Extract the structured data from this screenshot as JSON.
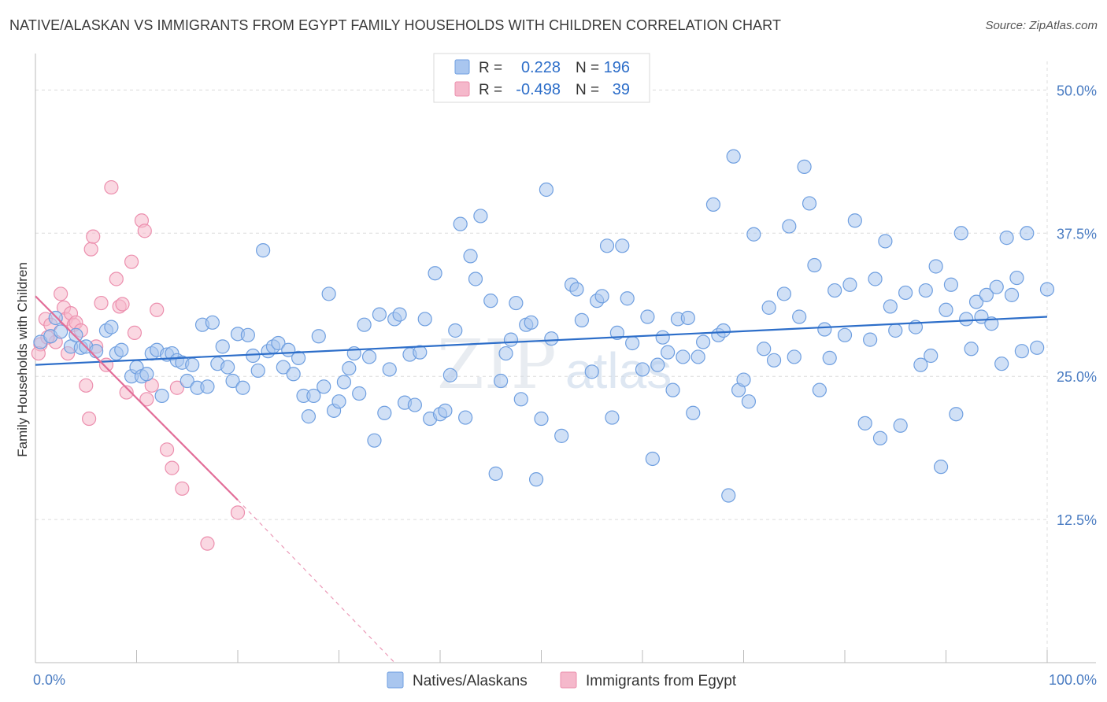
{
  "header": {
    "title": "NATIVE/ALASKAN VS IMMIGRANTS FROM EGYPT FAMILY HOUSEHOLDS WITH CHILDREN CORRELATION CHART",
    "source": "Source: ZipAtlas.com"
  },
  "watermark": {
    "part1": "ZIP",
    "part2": "atlas"
  },
  "legend": {
    "r_label": "R =",
    "n_label": "N =",
    "rows": [
      {
        "series": "Natives/Alaskans",
        "r": "0.228",
        "n": "196",
        "color": "#a9c6ef"
      },
      {
        "series": "Immigrants from Egypt",
        "r": "-0.498",
        "n": "39",
        "color": "#f5b8cb"
      }
    ]
  },
  "chart_data": {
    "type": "scatter",
    "title": "NATIVE/ALASKAN VS IMMIGRANTS FROM EGYPT FAMILY HOUSEHOLDS WITH CHILDREN CORRELATION CHART",
    "xlabel": "",
    "ylabel": "Family Households with Children",
    "xlim": [
      0,
      100
    ],
    "ylim": [
      0,
      52.5
    ],
    "x_tick_labels": [
      "0.0%",
      "100.0%"
    ],
    "y_ticks": [
      12.5,
      25.0,
      37.5,
      50.0
    ],
    "y_tick_labels": [
      "12.5%",
      "25.0%",
      "37.5%",
      "50.0%"
    ],
    "grid": true,
    "legend_position": "top-center",
    "series": [
      {
        "name": "Natives/Alaskans",
        "color": "#6f9fe0",
        "fill": "#a9c6ef",
        "trend": {
          "x": [
            0,
            100
          ],
          "y": [
            26.0,
            30.2
          ],
          "color": "#2d6ec9"
        },
        "points": [
          [
            0.5,
            28.0
          ],
          [
            1.5,
            28.5
          ],
          [
            2,
            30.1
          ],
          [
            2.5,
            28.9
          ],
          [
            3.5,
            27.6
          ],
          [
            4,
            28.6
          ],
          [
            4.5,
            27.5
          ],
          [
            5,
            27.6
          ],
          [
            6,
            27.2
          ],
          [
            7,
            29.0
          ],
          [
            7.5,
            29.3
          ],
          [
            8,
            27.0
          ],
          [
            8.5,
            27.3
          ],
          [
            9.5,
            25.0
          ],
          [
            10,
            25.8
          ],
          [
            10.5,
            25.0
          ],
          [
            11,
            25.2
          ],
          [
            11.5,
            27.0
          ],
          [
            12,
            27.3
          ],
          [
            12.5,
            23.3
          ],
          [
            13,
            26.9
          ],
          [
            13.5,
            27.0
          ],
          [
            14,
            26.4
          ],
          [
            14.5,
            26.2
          ],
          [
            15,
            24.6
          ],
          [
            15.5,
            26.0
          ],
          [
            16,
            24.0
          ],
          [
            16.5,
            29.5
          ],
          [
            17,
            24.1
          ],
          [
            17.5,
            29.7
          ],
          [
            18,
            26.1
          ],
          [
            18.5,
            27.6
          ],
          [
            19,
            25.8
          ],
          [
            19.5,
            24.6
          ],
          [
            20,
            28.7
          ],
          [
            20.5,
            24.0
          ],
          [
            21,
            28.6
          ],
          [
            21.5,
            26.8
          ],
          [
            22,
            25.5
          ],
          [
            22.5,
            36.0
          ],
          [
            23,
            27.2
          ],
          [
            23.5,
            27.6
          ],
          [
            24,
            27.9
          ],
          [
            24.5,
            25.8
          ],
          [
            25,
            27.3
          ],
          [
            25.5,
            25.2
          ],
          [
            26,
            26.6
          ],
          [
            26.5,
            23.3
          ],
          [
            27,
            21.5
          ],
          [
            27.5,
            23.3
          ],
          [
            28,
            28.5
          ],
          [
            28.5,
            24.1
          ],
          [
            29,
            32.2
          ],
          [
            29.5,
            22.0
          ],
          [
            30,
            22.8
          ],
          [
            30.5,
            24.5
          ],
          [
            31,
            25.7
          ],
          [
            31.5,
            27.0
          ],
          [
            32,
            23.5
          ],
          [
            32.5,
            29.5
          ],
          [
            33,
            26.7
          ],
          [
            33.5,
            19.4
          ],
          [
            34,
            30.4
          ],
          [
            34.5,
            21.8
          ],
          [
            35,
            25.6
          ],
          [
            35.5,
            30.0
          ],
          [
            36,
            30.4
          ],
          [
            36.5,
            22.7
          ],
          [
            37,
            26.9
          ],
          [
            37.5,
            22.5
          ],
          [
            38,
            27.1
          ],
          [
            38.5,
            30.0
          ],
          [
            39,
            21.3
          ],
          [
            39.5,
            34.0
          ],
          [
            40,
            21.7
          ],
          [
            40.5,
            22.0
          ],
          [
            41,
            25.1
          ],
          [
            41.5,
            29.0
          ],
          [
            42,
            38.3
          ],
          [
            42.5,
            21.4
          ],
          [
            43,
            35.5
          ],
          [
            43.5,
            33.5
          ],
          [
            44,
            39.0
          ],
          [
            45,
            31.6
          ],
          [
            45.5,
            16.5
          ],
          [
            46,
            24.6
          ],
          [
            46.5,
            27.0
          ],
          [
            47,
            28.2
          ],
          [
            47.5,
            31.4
          ],
          [
            48,
            23.0
          ],
          [
            48.5,
            29.5
          ],
          [
            49,
            29.7
          ],
          [
            49.5,
            16.0
          ],
          [
            50,
            21.3
          ],
          [
            50.5,
            41.3
          ],
          [
            51,
            28.3
          ],
          [
            52,
            19.8
          ],
          [
            53,
            33.0
          ],
          [
            53.5,
            32.6
          ],
          [
            54,
            29.9
          ],
          [
            55,
            25.4
          ],
          [
            55.5,
            31.6
          ],
          [
            56,
            32.0
          ],
          [
            56.5,
            36.4
          ],
          [
            57,
            21.4
          ],
          [
            57.5,
            28.8
          ],
          [
            58,
            36.4
          ],
          [
            58.5,
            31.8
          ],
          [
            59,
            27.9
          ],
          [
            60,
            25.6
          ],
          [
            60.5,
            30.2
          ],
          [
            61,
            17.8
          ],
          [
            61.5,
            26.0
          ],
          [
            62,
            28.4
          ],
          [
            62.5,
            27.1
          ],
          [
            63,
            23.8
          ],
          [
            63.5,
            30.0
          ],
          [
            64,
            26.7
          ],
          [
            64.5,
            30.1
          ],
          [
            65,
            21.8
          ],
          [
            65.5,
            26.7
          ],
          [
            66,
            28.0
          ],
          [
            67,
            40.0
          ],
          [
            67.5,
            28.6
          ],
          [
            68,
            29.0
          ],
          [
            68.5,
            14.6
          ],
          [
            69,
            44.2
          ],
          [
            69.5,
            23.8
          ],
          [
            70,
            24.7
          ],
          [
            70.5,
            22.8
          ],
          [
            71,
            37.4
          ],
          [
            72,
            27.4
          ],
          [
            72.5,
            31.0
          ],
          [
            73,
            26.4
          ],
          [
            74,
            32.2
          ],
          [
            74.5,
            38.1
          ],
          [
            75,
            26.7
          ],
          [
            75.5,
            30.2
          ],
          [
            76,
            43.3
          ],
          [
            76.5,
            40.1
          ],
          [
            77,
            34.7
          ],
          [
            77.5,
            23.8
          ],
          [
            78,
            29.1
          ],
          [
            78.5,
            26.6
          ],
          [
            79,
            32.5
          ],
          [
            80,
            28.6
          ],
          [
            80.5,
            33.0
          ],
          [
            81,
            38.6
          ],
          [
            82,
            20.9
          ],
          [
            82.5,
            28.2
          ],
          [
            83,
            33.5
          ],
          [
            83.5,
            19.6
          ],
          [
            84,
            36.8
          ],
          [
            84.5,
            31.1
          ],
          [
            85,
            29.0
          ],
          [
            85.5,
            20.7
          ],
          [
            86,
            32.3
          ],
          [
            87,
            29.3
          ],
          [
            87.5,
            26.0
          ],
          [
            88,
            32.5
          ],
          [
            88.5,
            26.8
          ],
          [
            89,
            34.6
          ],
          [
            89.5,
            17.1
          ],
          [
            90,
            30.8
          ],
          [
            90.5,
            33.0
          ],
          [
            91,
            21.7
          ],
          [
            91.5,
            37.5
          ],
          [
            92,
            30.0
          ],
          [
            92.5,
            27.4
          ],
          [
            93,
            31.5
          ],
          [
            93.5,
            30.2
          ],
          [
            94,
            32.1
          ],
          [
            94.5,
            29.6
          ],
          [
            95,
            32.8
          ],
          [
            95.5,
            26.1
          ],
          [
            96,
            37.1
          ],
          [
            96.5,
            32.1
          ],
          [
            97,
            33.6
          ],
          [
            97.5,
            27.2
          ],
          [
            98,
            37.5
          ],
          [
            99,
            27.5
          ],
          [
            100,
            32.6
          ]
        ]
      },
      {
        "name": "Immigrants from Egypt",
        "color": "#ec8fae",
        "fill": "#f5b8cb",
        "trend": {
          "x": [
            0,
            20.0
          ],
          "y": [
            32.0,
            14.2
          ],
          "color": "#e26d98",
          "dashed_extension_to": [
            35.5,
            0.0
          ]
        },
        "points": [
          [
            0.5,
            27.8
          ],
          [
            1,
            30.0
          ],
          [
            1.5,
            29.5
          ],
          [
            2,
            28.0
          ],
          [
            2.5,
            32.2
          ],
          [
            2.8,
            31.0
          ],
          [
            3,
            30.0
          ],
          [
            3.2,
            27.0
          ],
          [
            3.5,
            30.5
          ],
          [
            3.8,
            29.5
          ],
          [
            4,
            29.7
          ],
          [
            4.5,
            29.0
          ],
          [
            5,
            24.2
          ],
          [
            5.3,
            21.3
          ],
          [
            5.5,
            36.1
          ],
          [
            5.7,
            37.2
          ],
          [
            6,
            27.6
          ],
          [
            6.5,
            31.4
          ],
          [
            7,
            26.0
          ],
          [
            7.5,
            41.5
          ],
          [
            8,
            33.5
          ],
          [
            8.3,
            31.1
          ],
          [
            8.6,
            31.3
          ],
          [
            9,
            23.6
          ],
          [
            9.5,
            35.0
          ],
          [
            9.8,
            28.8
          ],
          [
            10.5,
            38.6
          ],
          [
            10.8,
            37.7
          ],
          [
            11,
            23.0
          ],
          [
            11.5,
            24.2
          ],
          [
            12,
            30.8
          ],
          [
            13,
            18.6
          ],
          [
            13.5,
            17.0
          ],
          [
            14,
            24.0
          ],
          [
            14.5,
            15.2
          ],
          [
            17,
            10.4
          ],
          [
            20,
            13.1
          ],
          [
            0.3,
            27.0
          ],
          [
            1.2,
            28.4
          ]
        ]
      }
    ]
  }
}
